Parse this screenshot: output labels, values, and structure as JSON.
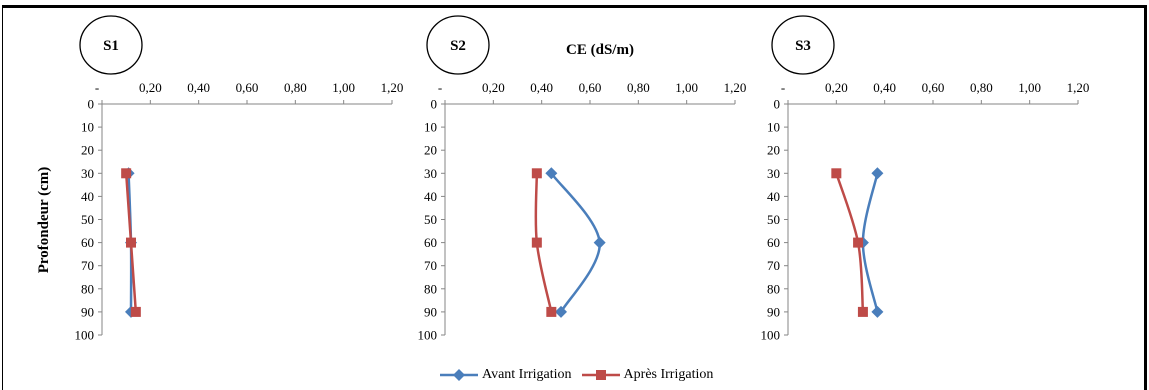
{
  "chart_data": {
    "type": "line",
    "xlabel": "CE (dS/m)",
    "ylabel": "Profondeur (cm)",
    "x_tick_labels": [
      "-",
      "0,20",
      "0,40",
      "0,60",
      "0,80",
      "1,00",
      "1,20"
    ],
    "xlim": [
      0,
      1.2
    ],
    "y_tick_labels": [
      "0",
      "10",
      "20",
      "30",
      "40",
      "50",
      "60",
      "70",
      "80",
      "90",
      "100"
    ],
    "ylim": [
      0,
      100
    ],
    "y_inverted": true,
    "colors": {
      "Avant Irrigation": "#4a7ebb",
      "Après Irrigation": "#be4b48"
    },
    "legend_position": "bottom-center",
    "panels": [
      {
        "title": "S1",
        "series": [
          {
            "name": "Avant Irrigation",
            "marker": "diamond",
            "points": [
              {
                "x": 0.11,
                "y": 30
              },
              {
                "x": 0.12,
                "y": 60
              },
              {
                "x": 0.12,
                "y": 90
              }
            ]
          },
          {
            "name": "Après Irrigation",
            "marker": "square",
            "points": [
              {
                "x": 0.1,
                "y": 30
              },
              {
                "x": 0.12,
                "y": 60
              },
              {
                "x": 0.14,
                "y": 90
              }
            ]
          }
        ]
      },
      {
        "title": "S2",
        "series": [
          {
            "name": "Avant Irrigation",
            "marker": "diamond",
            "points": [
              {
                "x": 0.44,
                "y": 30
              },
              {
                "x": 0.64,
                "y": 60
              },
              {
                "x": 0.48,
                "y": 90
              }
            ]
          },
          {
            "name": "Après Irrigation",
            "marker": "square",
            "points": [
              {
                "x": 0.38,
                "y": 30
              },
              {
                "x": 0.38,
                "y": 60
              },
              {
                "x": 0.44,
                "y": 90
              }
            ]
          }
        ]
      },
      {
        "title": "S3",
        "series": [
          {
            "name": "Avant Irrigation",
            "marker": "diamond",
            "points": [
              {
                "x": 0.37,
                "y": 30
              },
              {
                "x": 0.31,
                "y": 60
              },
              {
                "x": 0.37,
                "y": 90
              }
            ]
          },
          {
            "name": "Après Irrigation",
            "marker": "square",
            "points": [
              {
                "x": 0.2,
                "y": 30
              },
              {
                "x": 0.29,
                "y": 60
              },
              {
                "x": 0.31,
                "y": 90
              }
            ]
          }
        ]
      }
    ],
    "legend": [
      "Avant Irrigation",
      "Après Irrigation"
    ]
  }
}
